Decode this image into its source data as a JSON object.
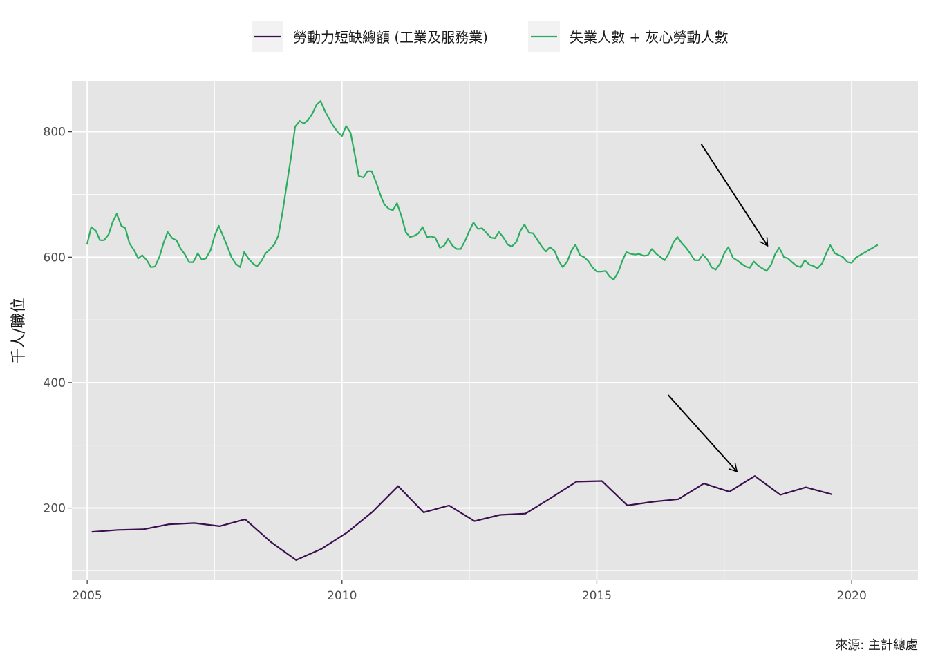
{
  "chart_data": {
    "type": "line",
    "title": "",
    "xlabel": "",
    "ylabel": "千人/職位",
    "caption": "來源: 主計總處",
    "xlim": [
      2004.7,
      2021.3
    ],
    "ylim": [
      85,
      880
    ],
    "x_ticks": [
      2005,
      2010,
      2015,
      2020
    ],
    "y_ticks": [
      200,
      400,
      600,
      800
    ],
    "grid": true,
    "legend_position": "top",
    "colors": {
      "panel": "#e5e5e5",
      "grid": "#ffffff",
      "arrow": "#000000"
    },
    "series": [
      {
        "name": "勞動力短缺總額 (工業及服務業)",
        "color": "#3b0f4f",
        "points": [
          [
            2005.1,
            162
          ],
          [
            2005.6,
            165
          ],
          [
            2006.1,
            166
          ],
          [
            2006.6,
            174
          ],
          [
            2007.1,
            176
          ],
          [
            2007.6,
            171
          ],
          [
            2008.1,
            182
          ],
          [
            2008.6,
            146
          ],
          [
            2009.1,
            117
          ],
          [
            2009.6,
            135
          ],
          [
            2010.1,
            161
          ],
          [
            2010.6,
            194
          ],
          [
            2011.1,
            235
          ],
          [
            2011.6,
            193
          ],
          [
            2012.1,
            204
          ],
          [
            2012.6,
            179
          ],
          [
            2013.1,
            189
          ],
          [
            2013.6,
            191
          ],
          [
            2014.1,
            216
          ],
          [
            2014.6,
            242
          ],
          [
            2015.1,
            243
          ],
          [
            2015.6,
            204
          ],
          [
            2016.1,
            210
          ],
          [
            2016.6,
            214
          ],
          [
            2017.1,
            239
          ],
          [
            2017.6,
            226
          ],
          [
            2018.1,
            251
          ],
          [
            2018.6,
            221
          ],
          [
            2019.1,
            233
          ],
          [
            2019.6,
            222
          ]
        ]
      },
      {
        "name": "失業人數 + 灰心勞動人數",
        "color": "#2aad5e",
        "points": [
          [
            2005.0,
            621
          ],
          [
            2005.08,
            648
          ],
          [
            2005.17,
            642
          ],
          [
            2005.25,
            627
          ],
          [
            2005.33,
            627
          ],
          [
            2005.42,
            636
          ],
          [
            2005.5,
            656
          ],
          [
            2005.58,
            669
          ],
          [
            2005.67,
            650
          ],
          [
            2005.75,
            646
          ],
          [
            2005.83,
            622
          ],
          [
            2005.92,
            611
          ],
          [
            2006.0,
            598
          ],
          [
            2006.08,
            603
          ],
          [
            2006.17,
            595
          ],
          [
            2006.25,
            584
          ],
          [
            2006.33,
            585
          ],
          [
            2006.42,
            601
          ],
          [
            2006.5,
            623
          ],
          [
            2006.58,
            640
          ],
          [
            2006.67,
            630
          ],
          [
            2006.75,
            627
          ],
          [
            2006.83,
            614
          ],
          [
            2006.92,
            604
          ],
          [
            2007.0,
            592
          ],
          [
            2007.08,
            592
          ],
          [
            2007.17,
            606
          ],
          [
            2007.25,
            596
          ],
          [
            2007.33,
            598
          ],
          [
            2007.42,
            611
          ],
          [
            2007.5,
            634
          ],
          [
            2007.58,
            650
          ],
          [
            2007.67,
            633
          ],
          [
            2007.75,
            617
          ],
          [
            2007.83,
            600
          ],
          [
            2007.92,
            589
          ],
          [
            2008.0,
            584
          ],
          [
            2008.08,
            608
          ],
          [
            2008.17,
            597
          ],
          [
            2008.25,
            590
          ],
          [
            2008.33,
            585
          ],
          [
            2008.42,
            594
          ],
          [
            2008.5,
            606
          ],
          [
            2008.58,
            612
          ],
          [
            2008.67,
            620
          ],
          [
            2008.75,
            634
          ],
          [
            2008.83,
            670
          ],
          [
            2008.92,
            718
          ],
          [
            2009.0,
            760
          ],
          [
            2009.08,
            808
          ],
          [
            2009.17,
            817
          ],
          [
            2009.25,
            813
          ],
          [
            2009.33,
            818
          ],
          [
            2009.42,
            829
          ],
          [
            2009.5,
            843
          ],
          [
            2009.58,
            849
          ],
          [
            2009.67,
            832
          ],
          [
            2009.75,
            820
          ],
          [
            2009.83,
            809
          ],
          [
            2009.92,
            799
          ],
          [
            2010.0,
            793
          ],
          [
            2010.08,
            809
          ],
          [
            2010.17,
            798
          ],
          [
            2010.25,
            764
          ],
          [
            2010.33,
            729
          ],
          [
            2010.42,
            727
          ],
          [
            2010.5,
            737
          ],
          [
            2010.58,
            737
          ],
          [
            2010.67,
            719
          ],
          [
            2010.75,
            700
          ],
          [
            2010.83,
            684
          ],
          [
            2010.92,
            677
          ],
          [
            2011.0,
            675
          ],
          [
            2011.08,
            686
          ],
          [
            2011.17,
            664
          ],
          [
            2011.25,
            640
          ],
          [
            2011.33,
            632
          ],
          [
            2011.42,
            634
          ],
          [
            2011.5,
            638
          ],
          [
            2011.58,
            648
          ],
          [
            2011.67,
            632
          ],
          [
            2011.75,
            633
          ],
          [
            2011.83,
            631
          ],
          [
            2011.92,
            615
          ],
          [
            2012.0,
            618
          ],
          [
            2012.08,
            629
          ],
          [
            2012.17,
            618
          ],
          [
            2012.25,
            613
          ],
          [
            2012.33,
            613
          ],
          [
            2012.42,
            627
          ],
          [
            2012.5,
            642
          ],
          [
            2012.58,
            655
          ],
          [
            2012.67,
            645
          ],
          [
            2012.75,
            646
          ],
          [
            2012.83,
            639
          ],
          [
            2012.92,
            631
          ],
          [
            2013.0,
            630
          ],
          [
            2013.08,
            640
          ],
          [
            2013.17,
            631
          ],
          [
            2013.25,
            620
          ],
          [
            2013.33,
            617
          ],
          [
            2013.42,
            624
          ],
          [
            2013.5,
            642
          ],
          [
            2013.58,
            652
          ],
          [
            2013.67,
            639
          ],
          [
            2013.75,
            638
          ],
          [
            2013.83,
            628
          ],
          [
            2013.92,
            617
          ],
          [
            2014.0,
            609
          ],
          [
            2014.08,
            616
          ],
          [
            2014.17,
            610
          ],
          [
            2014.25,
            594
          ],
          [
            2014.33,
            584
          ],
          [
            2014.42,
            593
          ],
          [
            2014.5,
            610
          ],
          [
            2014.58,
            620
          ],
          [
            2014.67,
            603
          ],
          [
            2014.75,
            600
          ],
          [
            2014.83,
            594
          ],
          [
            2014.92,
            583
          ],
          [
            2015.0,
            577
          ],
          [
            2015.08,
            577
          ],
          [
            2015.17,
            578
          ],
          [
            2015.25,
            569
          ],
          [
            2015.33,
            564
          ],
          [
            2015.42,
            576
          ],
          [
            2015.5,
            594
          ],
          [
            2015.58,
            608
          ],
          [
            2015.67,
            605
          ],
          [
            2015.75,
            604
          ],
          [
            2015.83,
            605
          ],
          [
            2015.92,
            602
          ],
          [
            2016.0,
            603
          ],
          [
            2016.08,
            613
          ],
          [
            2016.17,
            605
          ],
          [
            2016.25,
            600
          ],
          [
            2016.33,
            595
          ],
          [
            2016.42,
            607
          ],
          [
            2016.5,
            623
          ],
          [
            2016.58,
            632
          ],
          [
            2016.67,
            622
          ],
          [
            2016.75,
            615
          ],
          [
            2016.83,
            606
          ],
          [
            2016.92,
            595
          ],
          [
            2017.0,
            595
          ],
          [
            2017.08,
            604
          ],
          [
            2017.17,
            596
          ],
          [
            2017.25,
            584
          ],
          [
            2017.33,
            580
          ],
          [
            2017.42,
            590
          ],
          [
            2017.5,
            606
          ],
          [
            2017.58,
            616
          ],
          [
            2017.67,
            599
          ],
          [
            2017.75,
            595
          ],
          [
            2017.83,
            590
          ],
          [
            2017.92,
            585
          ],
          [
            2018.0,
            583
          ],
          [
            2018.08,
            593
          ],
          [
            2018.17,
            586
          ],
          [
            2018.25,
            582
          ],
          [
            2018.33,
            578
          ],
          [
            2018.42,
            588
          ],
          [
            2018.5,
            605
          ],
          [
            2018.58,
            615
          ],
          [
            2018.67,
            600
          ],
          [
            2018.75,
            598
          ],
          [
            2018.83,
            592
          ],
          [
            2018.92,
            586
          ],
          [
            2019.0,
            584
          ],
          [
            2019.08,
            595
          ],
          [
            2019.17,
            588
          ],
          [
            2019.25,
            586
          ],
          [
            2019.33,
            582
          ],
          [
            2019.42,
            590
          ],
          [
            2019.5,
            606
          ],
          [
            2019.58,
            619
          ],
          [
            2019.67,
            606
          ],
          [
            2019.75,
            603
          ],
          [
            2019.83,
            600
          ],
          [
            2019.92,
            592
          ],
          [
            2020.0,
            591
          ],
          [
            2020.08,
            599
          ],
          [
            2020.5,
            619
          ]
        ]
      }
    ],
    "annotations": [
      {
        "type": "arrow",
        "from": [
          2017.05,
          780
        ],
        "to": [
          2018.35,
          618
        ]
      },
      {
        "type": "arrow",
        "from": [
          2016.4,
          380
        ],
        "to": [
          2017.75,
          258
        ]
      }
    ]
  }
}
